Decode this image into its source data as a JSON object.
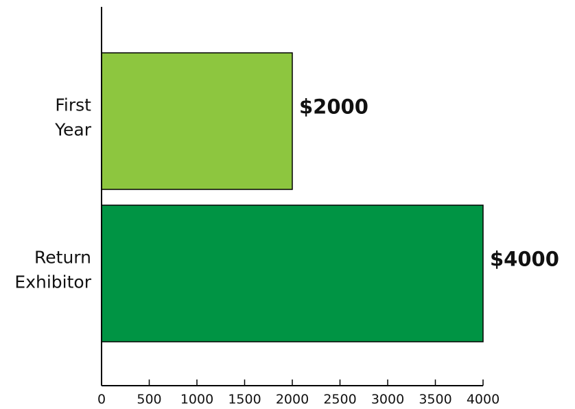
{
  "chart_data": {
    "type": "bar",
    "orientation": "horizontal",
    "categories": [
      "First Year",
      "Return Exhibitor"
    ],
    "category_lines": [
      [
        "First",
        "Year"
      ],
      [
        "Return",
        "Exhibitor"
      ]
    ],
    "values": [
      2000,
      4000
    ],
    "data_labels": [
      "$2000",
      "$4000"
    ],
    "bar_colors": [
      "#8dc63f",
      "#009444"
    ],
    "xlim": [
      0,
      4000
    ],
    "x_ticks": [
      0,
      500,
      1000,
      1500,
      2000,
      2500,
      3000,
      3500,
      4000
    ],
    "title": "",
    "xlabel": "",
    "ylabel": "",
    "grid": false,
    "legend": "none"
  }
}
